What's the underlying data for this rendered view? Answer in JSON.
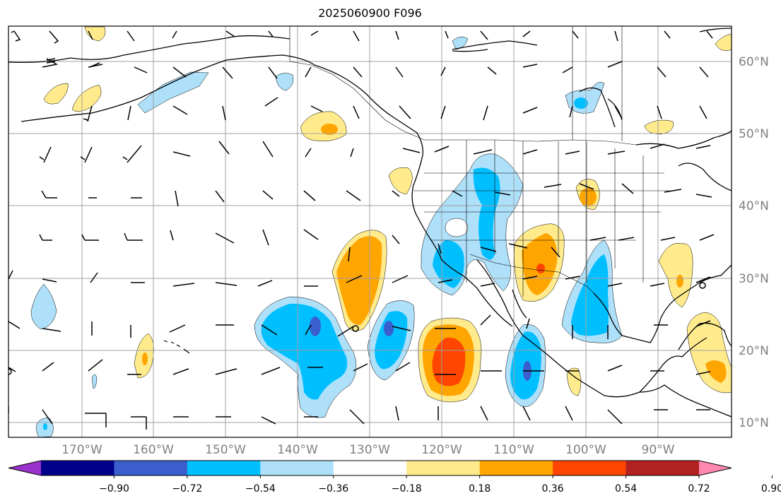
{
  "title": "2025060900 F096",
  "lat_labels": [
    "60°N",
    "50°N",
    "40°N",
    "30°N",
    "20°N",
    "10°N"
  ],
  "lon_labels": [
    "170°W",
    "160°W",
    "150°W",
    "140°W",
    "130°W",
    "120°W",
    "110°W",
    "100°W",
    "90°W"
  ],
  "colorbar": {
    "extend": "both",
    "levels": [
      -0.9,
      -0.72,
      -0.54,
      -0.36,
      -0.18,
      0.18,
      0.36,
      0.54,
      0.72,
      0.9
    ],
    "tick_labels": [
      "−0.90",
      "−0.72",
      "−0.54",
      "−0.36",
      "−0.18",
      "0.18",
      "0.36",
      "0.54",
      "0.72",
      "0.90"
    ],
    "colors": [
      "#9932cc",
      "#00008b",
      "#3a5fcd",
      "#00bfff",
      "#aee0fa",
      "#ffffff",
      "#ffeb8c",
      "#ffa500",
      "#ff4500",
      "#b22222",
      "#ff88b0"
    ]
  },
  "colors": {
    "gridlines": "#a0a0a0",
    "coastline": "#000000",
    "wind_barbs": "#000000"
  }
}
